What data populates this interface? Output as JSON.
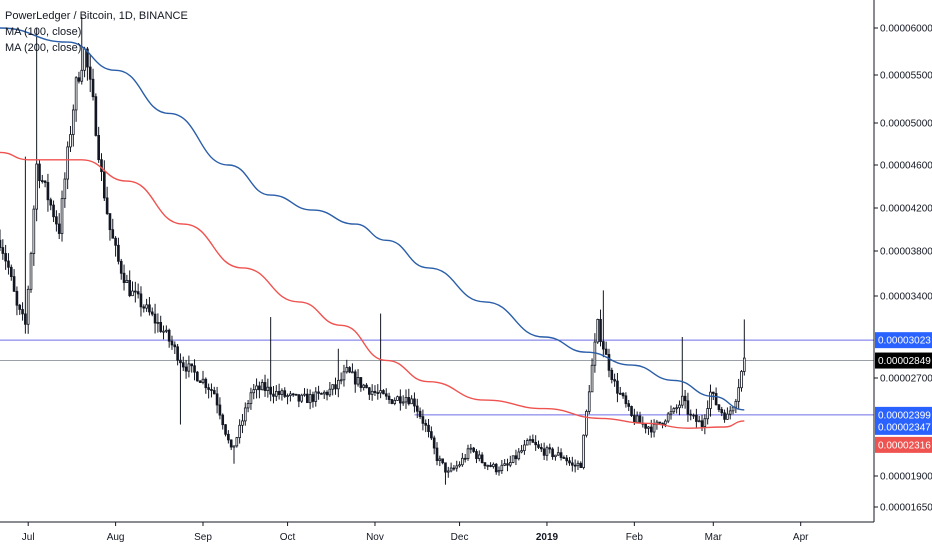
{
  "legend": {
    "title": "PowerLedger / Bitcoin, 1D, BINANCE",
    "ma100": "MA (100, close)",
    "ma200": "MA (200, close)"
  },
  "colors": {
    "up": "#26a69a",
    "down": "#131722",
    "candle": "#131722",
    "ma100": "#2a5ea8",
    "ma200": "#ef5350",
    "hline": "#6e6ee6",
    "last_line": "#9aa0a6",
    "tag_blue": "#2962ff",
    "tag_black": "#000000",
    "tag_red": "#ef5350"
  },
  "chart_data": {
    "type": "candlestick",
    "title": "PowerLedger / Bitcoin, 1D, BINANCE",
    "y_ticks": [
      "0.00006000",
      "0.00005500",
      "0.00005000",
      "0.00004600",
      "0.00004200",
      "0.00003800",
      "0.00003400",
      "0.00002700",
      "0.00001900",
      "0.00001650"
    ],
    "x_ticks": [
      {
        "label": "Jul",
        "bold": false
      },
      {
        "label": "Aug",
        "bold": false
      },
      {
        "label": "Sep",
        "bold": false
      },
      {
        "label": "Oct",
        "bold": false
      },
      {
        "label": "Nov",
        "bold": false
      },
      {
        "label": "Dec",
        "bold": false
      },
      {
        "label": "2019",
        "bold": true
      },
      {
        "label": "Feb",
        "bold": false
      },
      {
        "label": "Mar",
        "bold": false
      },
      {
        "label": "Apr",
        "bold": false
      }
    ],
    "x_tick_dates": [
      "2018-07-01",
      "2018-08-01",
      "2018-09-01",
      "2018-10-01",
      "2018-11-01",
      "2018-12-01",
      "2019-01-01",
      "2019-02-01",
      "2019-03-01",
      "2019-04-01"
    ],
    "price_tags": [
      {
        "label": "0.00003023",
        "value": 3.023e-05,
        "color": "tag_blue",
        "line": true
      },
      {
        "label": "0.00002849",
        "value": 2.849e-05,
        "color": "tag_black",
        "line": true
      },
      {
        "label": "0.00002399",
        "value": 2.399e-05,
        "color": "tag_blue",
        "line": true
      },
      {
        "label": "0.00002347",
        "value": 2.347e-05,
        "color": "tag_blue",
        "line": false
      },
      {
        "label": "0.00002316",
        "value": 2.316e-05,
        "color": "tag_red",
        "line": false
      }
    ],
    "ma100": [
      [
        "2018-06-21",
        6e-05
      ],
      [
        "2018-07-15",
        5.85e-05
      ],
      [
        "2018-08-01",
        5.55e-05
      ],
      [
        "2018-08-20",
        5.1e-05
      ],
      [
        "2018-09-10",
        4.6e-05
      ],
      [
        "2018-09-25",
        4.32e-05
      ],
      [
        "2018-10-10",
        4.18e-05
      ],
      [
        "2018-10-25",
        4.05e-05
      ],
      [
        "2018-11-05",
        3.9e-05
      ],
      [
        "2018-11-20",
        3.65e-05
      ],
      [
        "2018-12-10",
        3.35e-05
      ],
      [
        "2018-12-31",
        3.05e-05
      ],
      [
        "2019-01-15",
        2.92e-05
      ],
      [
        "2019-01-31",
        2.81e-05
      ],
      [
        "2019-02-15",
        2.68e-05
      ],
      [
        "2019-03-01",
        2.55e-05
      ],
      [
        "2019-03-12",
        2.44e-05
      ]
    ],
    "ma200": [
      [
        "2018-06-21",
        4.72e-05
      ],
      [
        "2018-07-01",
        4.65e-05
      ],
      [
        "2018-07-20",
        4.65e-05
      ],
      [
        "2018-08-05",
        4.45e-05
      ],
      [
        "2018-08-25",
        4.05e-05
      ],
      [
        "2018-09-15",
        3.65e-05
      ],
      [
        "2018-10-05",
        3.35e-05
      ],
      [
        "2018-10-20",
        3.15e-05
      ],
      [
        "2018-11-05",
        2.85e-05
      ],
      [
        "2018-11-20",
        2.67e-05
      ],
      [
        "2018-12-10",
        2.52e-05
      ],
      [
        "2018-12-31",
        2.45e-05
      ],
      [
        "2019-01-20",
        2.37e-05
      ],
      [
        "2019-02-05",
        2.33e-05
      ],
      [
        "2019-02-20",
        2.29e-05
      ],
      [
        "2019-03-05",
        2.3e-05
      ],
      [
        "2019-03-12",
        2.35e-05
      ]
    ],
    "price_path": [
      [
        "2018-06-21",
        3.9e-05
      ],
      [
        "2018-06-24",
        3.65e-05
      ],
      [
        "2018-06-27",
        3.3e-05
      ],
      [
        "2018-06-30",
        3.15e-05
      ],
      [
        "2018-07-02",
        3.8e-05
      ],
      [
        "2018-07-04",
        4.6e-05
      ],
      [
        "2018-07-08",
        4.3e-05
      ],
      [
        "2018-07-12",
        4e-05
      ],
      [
        "2018-07-15",
        4.7e-05
      ],
      [
        "2018-07-18",
        5.4e-05
      ],
      [
        "2018-07-21",
        5.75e-05
      ],
      [
        "2018-07-24",
        5.2e-05
      ],
      [
        "2018-07-27",
        4.5e-05
      ],
      [
        "2018-07-30",
        4e-05
      ],
      [
        "2018-08-02",
        3.7e-05
      ],
      [
        "2018-08-06",
        3.45e-05
      ],
      [
        "2018-08-12",
        3.28e-05
      ],
      [
        "2018-08-18",
        3.1e-05
      ],
      [
        "2018-08-25",
        2.82e-05
      ],
      [
        "2018-09-01",
        2.68e-05
      ],
      [
        "2018-09-05",
        2.58e-05
      ],
      [
        "2018-09-08",
        2.35e-05
      ],
      [
        "2018-09-11",
        2.1e-05
      ],
      [
        "2018-09-14",
        2.28e-05
      ],
      [
        "2018-09-18",
        2.58e-05
      ],
      [
        "2018-09-22",
        2.62e-05
      ],
      [
        "2018-09-28",
        2.57e-05
      ],
      [
        "2018-10-05",
        2.52e-05
      ],
      [
        "2018-10-12",
        2.55e-05
      ],
      [
        "2018-10-18",
        2.62e-05
      ],
      [
        "2018-10-22",
        2.75e-05
      ],
      [
        "2018-10-27",
        2.65e-05
      ],
      [
        "2018-11-01",
        2.58e-05
      ],
      [
        "2018-11-06",
        2.52e-05
      ],
      [
        "2018-11-12",
        2.55e-05
      ],
      [
        "2018-11-15",
        2.5e-05
      ],
      [
        "2018-11-19",
        2.3e-05
      ],
      [
        "2018-11-23",
        2.05e-05
      ],
      [
        "2018-11-27",
        1.92e-05
      ],
      [
        "2018-12-01",
        2e-05
      ],
      [
        "2018-12-05",
        2.12e-05
      ],
      [
        "2018-12-09",
        2.02e-05
      ],
      [
        "2018-12-14",
        1.96e-05
      ],
      [
        "2018-12-18",
        1.98e-05
      ],
      [
        "2018-12-22",
        2.08e-05
      ],
      [
        "2018-12-26",
        2.18e-05
      ],
      [
        "2018-12-29",
        2.12e-05
      ],
      [
        "2019-01-03",
        2.08e-05
      ],
      [
        "2019-01-07",
        2.06e-05
      ],
      [
        "2019-01-10",
        1.98e-05
      ],
      [
        "2019-01-13",
        2e-05
      ],
      [
        "2019-01-16",
        2.62e-05
      ],
      [
        "2019-01-19",
        3.15e-05
      ],
      [
        "2019-01-22",
        2.88e-05
      ],
      [
        "2019-01-25",
        2.65e-05
      ],
      [
        "2019-01-28",
        2.52e-05
      ],
      [
        "2019-01-31",
        2.38e-05
      ],
      [
        "2019-02-04",
        2.32e-05
      ],
      [
        "2019-02-08",
        2.29e-05
      ],
      [
        "2019-02-12",
        2.38e-05
      ],
      [
        "2019-02-15",
        2.42e-05
      ],
      [
        "2019-02-18",
        2.52e-05
      ],
      [
        "2019-02-21",
        2.38e-05
      ],
      [
        "2019-02-25",
        2.32e-05
      ],
      [
        "2019-02-28",
        2.58e-05
      ],
      [
        "2019-03-03",
        2.45e-05
      ],
      [
        "2019-03-06",
        2.38e-05
      ],
      [
        "2019-03-09",
        2.55e-05
      ],
      [
        "2019-03-12",
        2.85e-05
      ]
    ],
    "spikes": [
      [
        "2018-07-04",
        6e-05
      ],
      [
        "2018-07-20",
        6.12e-05
      ],
      [
        "2018-06-30",
        4.68e-05
      ],
      [
        "2018-09-25",
        3.22e-05
      ],
      [
        "2018-10-19",
        2.95e-05
      ],
      [
        "2018-11-03",
        3.25e-05
      ],
      [
        "2019-01-21",
        3.45e-05
      ],
      [
        "2019-02-18",
        3.05e-05
      ],
      [
        "2019-03-12",
        3.2e-05
      ],
      [
        "2018-11-26",
        1.83e-05
      ],
      [
        "2018-09-12",
        2e-05
      ],
      [
        "2018-08-24",
        2.32e-05
      ]
    ]
  }
}
